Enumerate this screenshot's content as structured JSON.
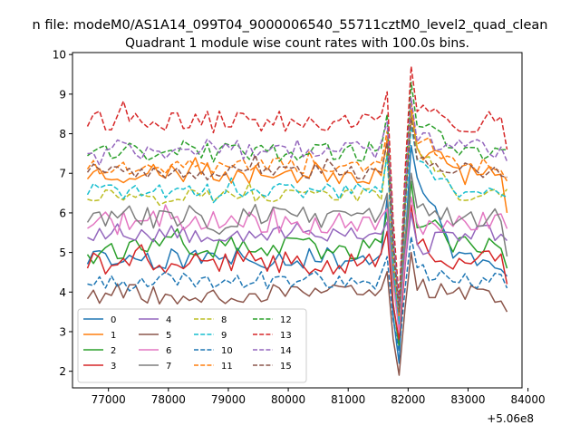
{
  "chart_data": {
    "type": "line",
    "suptitle": "n file: modeM0/AS1A14_099T04_9000006540_55711cztM0_level2_quad_clean",
    "title": "Quadrant 1 module wise count rates with 100.0s bins.",
    "xlabel": "",
    "ylabel": "",
    "x_offset_label": "+5.06e8",
    "xlim": [
      76400,
      83900
    ],
    "ylim": [
      1.58,
      10.05
    ],
    "xticks": [
      77000,
      78000,
      79000,
      80000,
      81000,
      82000,
      83000,
      84000
    ],
    "xtick_labels": [
      "77000",
      "78000",
      "79000",
      "80000",
      "81000",
      "82000",
      "83000",
      "84000"
    ],
    "yticks": [
      2,
      3,
      4,
      5,
      6,
      7,
      8,
      9,
      10
    ],
    "ytick_labels": [
      "2",
      "3",
      "4",
      "5",
      "6",
      "7",
      "8",
      "9",
      "10"
    ],
    "x_start": 76650,
    "x_step": 100,
    "gap_after_x": 81650,
    "dip_x": [
      81750,
      81850,
      81950,
      82050
    ],
    "dip_min_x": 81850,
    "legend_position": "lower-left",
    "legend_columns": 4,
    "series": [
      {
        "name": "0",
        "color": "#1f77b4",
        "dash": "solid",
        "level": 4.85,
        "noise": 0.28,
        "dip": 2.2,
        "peak": 7.7,
        "end": 4.4,
        "seed": 11
      },
      {
        "name": "1",
        "color": "#ff7f0e",
        "dash": "solid",
        "level": 7.0,
        "noise": 0.28,
        "dip": 3.0,
        "peak": 8.6,
        "end": 6.0,
        "seed": 23
      },
      {
        "name": "2",
        "color": "#2ca02c",
        "dash": "solid",
        "level": 5.1,
        "noise": 0.3,
        "dip": 2.6,
        "peak": 6.8,
        "end": 4.6,
        "seed": 37
      },
      {
        "name": "3",
        "color": "#d62728",
        "dash": "solid",
        "level": 4.75,
        "noise": 0.3,
        "dip": 2.8,
        "peak": 6.2,
        "end": 4.2,
        "seed": 41
      },
      {
        "name": "4",
        "color": "#9467bd",
        "dash": "solid",
        "level": 5.5,
        "noise": 0.25,
        "dip": 3.2,
        "peak": 6.0,
        "end": 5.3,
        "seed": 53
      },
      {
        "name": "5",
        "color": "#8c564b",
        "dash": "solid",
        "level": 3.95,
        "noise": 0.25,
        "dip": 1.9,
        "peak": 5.0,
        "end": 3.5,
        "seed": 67
      },
      {
        "name": "6",
        "color": "#e377c2",
        "dash": "solid",
        "level": 5.75,
        "noise": 0.3,
        "dip": 3.0,
        "peak": 6.4,
        "end": 5.6,
        "seed": 71
      },
      {
        "name": "7",
        "color": "#7f7f7f",
        "dash": "solid",
        "level": 5.9,
        "noise": 0.3,
        "dip": 3.3,
        "peak": 7.0,
        "end": 4.9,
        "seed": 83
      },
      {
        "name": "8",
        "color": "#bcbd22",
        "dash": "dashed",
        "level": 6.45,
        "noise": 0.18,
        "dip": 3.4,
        "peak": 8.5,
        "end": 6.6,
        "seed": 97
      },
      {
        "name": "9",
        "color": "#17becf",
        "dash": "dashed",
        "level": 6.55,
        "noise": 0.2,
        "dip": 3.2,
        "peak": 8.2,
        "end": 6.4,
        "seed": 101
      },
      {
        "name": "10",
        "color": "#1f77b4",
        "dash": "dashed",
        "level": 4.3,
        "noise": 0.22,
        "dip": 2.5,
        "peak": 5.4,
        "end": 4.1,
        "seed": 113
      },
      {
        "name": "11",
        "color": "#ff7f0e",
        "dash": "dashed",
        "level": 7.2,
        "noise": 0.22,
        "dip": 3.4,
        "peak": 8.8,
        "end": 6.8,
        "seed": 127
      },
      {
        "name": "12",
        "color": "#2ca02c",
        "dash": "dashed",
        "level": 7.55,
        "noise": 0.25,
        "dip": 3.6,
        "peak": 9.3,
        "end": 7.6,
        "seed": 131
      },
      {
        "name": "13",
        "color": "#d62728",
        "dash": "dashed",
        "level": 8.3,
        "noise": 0.28,
        "dip": 3.8,
        "peak": 9.7,
        "end": 7.6,
        "seed": 149
      },
      {
        "name": "14",
        "color": "#9467bd",
        "dash": "dashed",
        "level": 7.6,
        "noise": 0.25,
        "dip": 3.6,
        "peak": 8.9,
        "end": 7.3,
        "seed": 157
      },
      {
        "name": "15",
        "color": "#8c564b",
        "dash": "dashed",
        "level": 7.05,
        "noise": 0.22,
        "dip": 3.5,
        "peak": 8.4,
        "end": 6.9,
        "seed": 163
      }
    ]
  }
}
